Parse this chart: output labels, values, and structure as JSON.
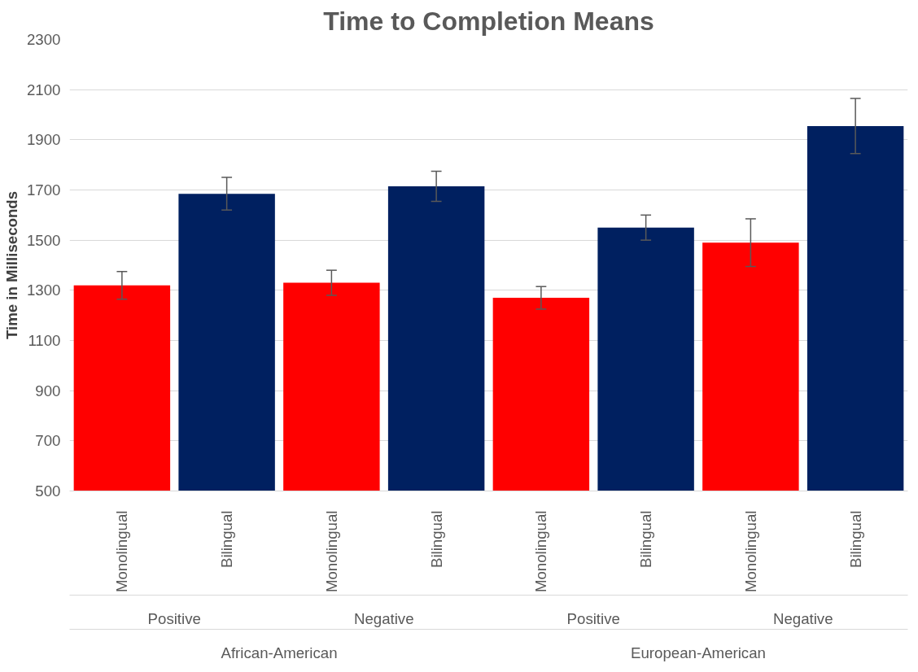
{
  "chart_data": {
    "type": "bar",
    "title": "Time to Completion Means",
    "ylabel": "Time in Milliseconds",
    "categories": [
      "Monolingual",
      "Bilingual",
      "Monolingual",
      "Bilingual",
      "Monolingual",
      "Bilingual",
      "Monolingual",
      "Bilingual"
    ],
    "values": [
      1320,
      1685,
      1330,
      1715,
      1270,
      1550,
      1490,
      1955
    ],
    "colors": [
      "#ff0000",
      "#002060",
      "#ff0000",
      "#002060",
      "#ff0000",
      "#002060",
      "#ff0000",
      "#002060"
    ],
    "errors": [
      55,
      65,
      50,
      60,
      45,
      50,
      95,
      110
    ],
    "annotations": [
      "Positive",
      "Negative",
      "Positive",
      "Negative",
      "African-American",
      "European-American"
    ],
    "ylim": [
      500,
      2300
    ],
    "yticks": [
      500,
      700,
      900,
      1100,
      1300,
      1500,
      1700,
      1900,
      2100,
      2300
    ],
    "grid": "y"
  }
}
